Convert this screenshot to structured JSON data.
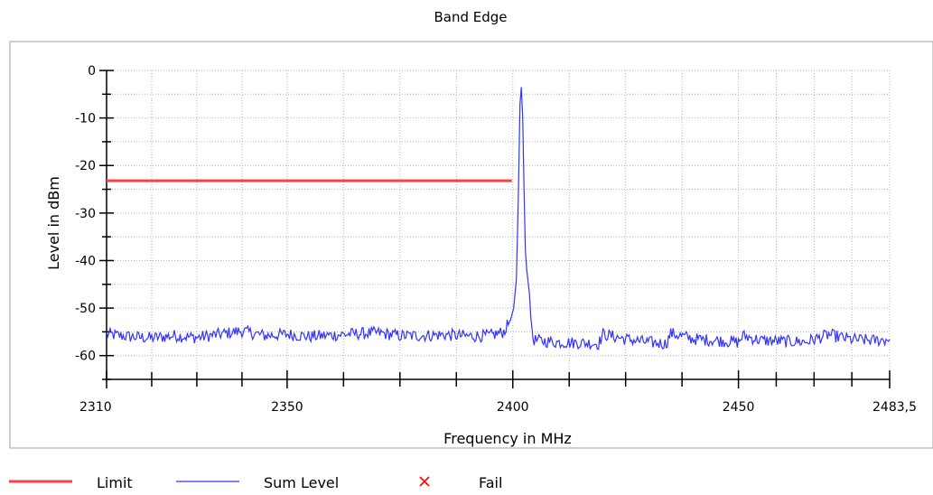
{
  "chart_data": {
    "type": "line",
    "title": "Band Edge",
    "xlabel": "Frequency in MHz",
    "ylabel": "Level in dBm",
    "xlim": [
      2310,
      2483.5
    ],
    "ylim": [
      -65,
      0
    ],
    "x_ticks": [
      2310,
      2350,
      2400,
      2450,
      2483.5
    ],
    "x_tick_labels": [
      "2310",
      "2350",
      "2400",
      "2450",
      "2483,5"
    ],
    "y_ticks": [
      0,
      -10,
      -20,
      -30,
      -40,
      -50,
      -60
    ],
    "y_tick_labels": [
      "0",
      "-10",
      "-20",
      "-30",
      "-40",
      "-50",
      "-60"
    ],
    "grid": true,
    "legend_position": "bottom",
    "series": [
      {
        "name": "Limit",
        "color": "#ff4040",
        "x": [
          2310,
          2399.8
        ],
        "y": [
          -23.2,
          -23.2
        ]
      },
      {
        "name": "Sum Level",
        "color": "#3333ff",
        "x": [
          2310,
          2315,
          2320,
          2325,
          2330,
          2335,
          2340,
          2345,
          2350,
          2355,
          2360,
          2365,
          2370,
          2375,
          2380,
          2385,
          2390,
          2395,
          2398,
          2399.5,
          2400.2,
          2400.8,
          2401.2,
          2401.6,
          2401.9,
          2402.2,
          2402.5,
          2402.8,
          2403.1,
          2403.4,
          2403.7,
          2404.0,
          2404.5,
          2405,
          2410,
          2415,
          2419,
          2420,
          2425,
          2430,
          2434,
          2435,
          2440,
          2445,
          2450,
          2451,
          2455,
          2460,
          2465,
          2470,
          2475,
          2480,
          2483.5
        ],
        "y": [
          -55.5,
          -56,
          -56.3,
          -55.8,
          -56.2,
          -55.5,
          -54.8,
          -55.8,
          -55.5,
          -56,
          -55.7,
          -55.4,
          -55.2,
          -55.8,
          -55.8,
          -55.6,
          -55.9,
          -55.8,
          -55,
          -52.5,
          -50,
          -44,
          -28,
          -7,
          -3.5,
          -10,
          -25,
          -38,
          -42,
          -44.5,
          -47,
          -52,
          -56.5,
          -56.8,
          -57.2,
          -57.3,
          -57.5,
          -55.5,
          -56.5,
          -57.2,
          -57.5,
          -55.3,
          -56.5,
          -56.8,
          -57.2,
          -55.8,
          -56.8,
          -57,
          -57.1,
          -55.6,
          -56.6,
          -56.8,
          -56.6
        ]
      }
    ],
    "legend": [
      {
        "label": "Limit",
        "symbol": "line",
        "color": "#ff4040"
      },
      {
        "label": "Sum Level",
        "symbol": "line",
        "color": "#3333ff"
      },
      {
        "label": "Fail",
        "symbol": "cross",
        "color": "#ff0000"
      }
    ]
  }
}
